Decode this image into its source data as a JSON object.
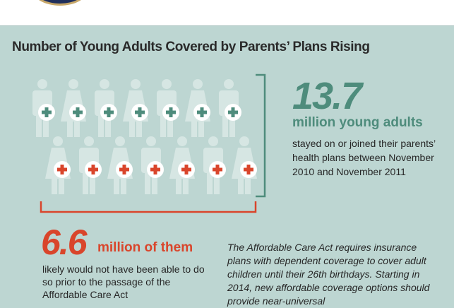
{
  "title": "Number of Young Adults Covered by Parents’ Plans Rising",
  "colors": {
    "background": "#bdd6d2",
    "green": "#4e8c7c",
    "red": "#d9452b",
    "figure": "#d6e6e3"
  },
  "figures": {
    "top_row": [
      "man",
      "woman",
      "man",
      "woman",
      "man",
      "woman",
      "man"
    ],
    "top_badge": "green-plus-icon",
    "bottom_row": [
      "woman",
      "man",
      "woman",
      "man",
      "woman",
      "man",
      "woman"
    ],
    "bottom_badge": "red-plus-icon"
  },
  "stat1": {
    "number": "13.7",
    "label": "million young adults",
    "text": "stayed on or joined their parents’ health plans between November 2010 and November 2011"
  },
  "stat2": {
    "number": "6.6",
    "label": "million of them",
    "text": "likely would not have been able to do so prior to the passage of the Affordable Care Act"
  },
  "note": "The Affordable Care Act requires insurance plans with dependent coverage to cover adult children until their 26th birthdays. Starting in 2014, new affordable coverage options should provide near-universal"
}
